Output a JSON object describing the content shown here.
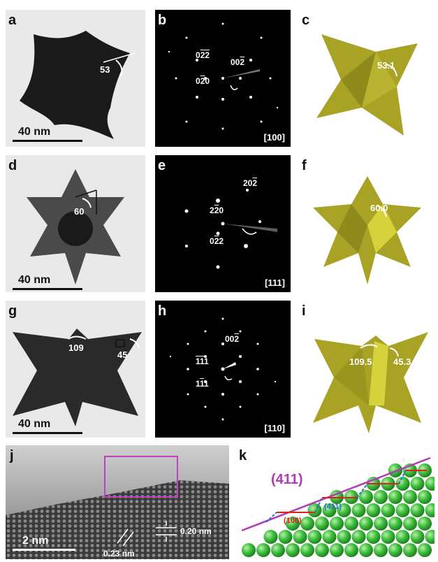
{
  "panel_labels": {
    "a": "a",
    "b": "b",
    "c": "c",
    "d": "d",
    "e": "e",
    "f": "f",
    "g": "g",
    "h": "h",
    "i": "i",
    "j": "j",
    "k": "k"
  },
  "tem": {
    "a": {
      "scale": "40 nm",
      "angle": "53"
    },
    "d": {
      "scale": "40 nm",
      "angle": "60"
    },
    "g": {
      "scale": "40 nm",
      "angle1": "109",
      "angle2": "45"
    },
    "j": {
      "scale": "2 nm",
      "d1": "0.20 nm",
      "d2": "0.23 nm"
    }
  },
  "saed": {
    "b": {
      "zone": "[100]",
      "spots": [
        {
          "pre": "0",
          "bar": "2",
          "mid": "",
          "bar2": "2"
        },
        {
          "pre": "00",
          "bar": "2"
        },
        {
          "pre": "0",
          "bar": "2",
          "post": "0"
        }
      ]
    },
    "e": {
      "zone": "[111]"
    },
    "h": {
      "zone": "[110]"
    }
  },
  "model": {
    "c": {
      "angle": "53.1"
    },
    "f": {
      "angle": "60.0"
    },
    "i": {
      "angle1": "109.5",
      "angle2": "45.3"
    }
  },
  "lattice": {
    "plane": "(411)",
    "step1": "(100)",
    "step2": "(411)"
  },
  "colors": {
    "model_fill": "#a8a325",
    "model_dark": "#7d7a18",
    "model_light": "#d6d23c",
    "sphere": "#3fbf3f",
    "plane_line": "#b23ab8",
    "step_red": "#e02020",
    "step_blue": "#2a6fd0"
  }
}
